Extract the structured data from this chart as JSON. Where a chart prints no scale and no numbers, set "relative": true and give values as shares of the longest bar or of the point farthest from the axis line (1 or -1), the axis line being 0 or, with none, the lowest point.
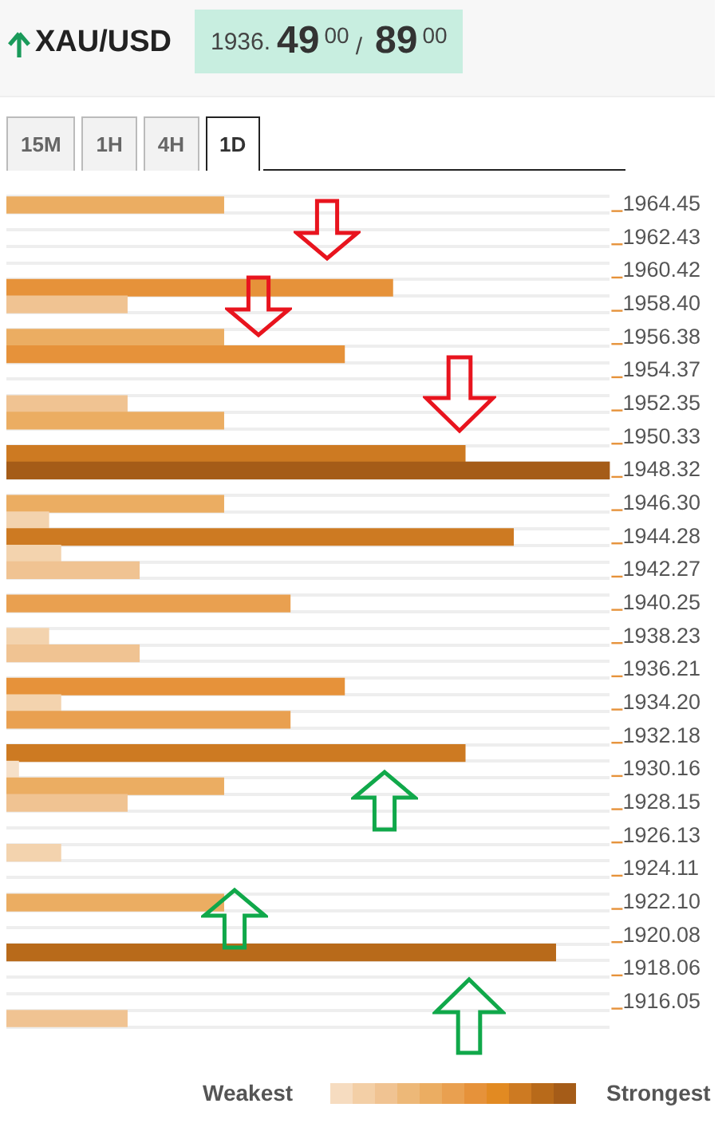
{
  "chart_data": {
    "type": "bar",
    "orientation": "horizontal",
    "relative": true,
    "grid": "y",
    "title": "XAU/USD",
    "annotations": [
      "1936.",
      "49",
      "00",
      "/",
      "89",
      "00",
      "15M",
      "1H",
      "4H",
      "1D",
      "Weakest",
      "Strongest"
    ],
    "categories": [
      "1964.45",
      null,
      "1962.43",
      null,
      "1960.42",
      null,
      "1958.40",
      null,
      "1956.38",
      null,
      "1954.37",
      null,
      "1952.35",
      null,
      "1950.33",
      null,
      "1948.32",
      null,
      "1946.30",
      null,
      "1944.28",
      null,
      "1942.27",
      null,
      "1940.25",
      null,
      "1938.23",
      null,
      "1936.21",
      null,
      "1934.20",
      null,
      "1932.18",
      null,
      "1930.16",
      null,
      "1928.15",
      null,
      "1926.13",
      null,
      "1924.11",
      null,
      "1922.10",
      null,
      "1920.08",
      null,
      "1918.06",
      null,
      "1916.05",
      null
    ],
    "values": [
      0.36,
      null,
      null,
      null,
      null,
      0.64,
      0.2,
      null,
      0.36,
      0.56,
      null,
      null,
      0.2,
      0.36,
      null,
      0.76,
      1,
      null,
      0.36,
      0.07,
      0.84,
      0.09,
      0.22,
      null,
      0.47,
      null,
      0.07,
      0.22,
      null,
      0.56,
      0.09,
      0.47,
      null,
      0.76,
      0.02,
      0.36,
      0.2,
      null,
      null,
      0.09,
      null,
      null,
      0.36,
      null,
      null,
      0.91,
      null,
      null,
      null,
      0.2
    ],
    "colors": [
      "#ebad62",
      null,
      null,
      null,
      null,
      "#e6923a",
      "#f0c392",
      null,
      "#ebad62",
      "#e6923a",
      null,
      null,
      "#f0c392",
      "#ebad62",
      null,
      "#cd7a22",
      "#a55c18",
      null,
      "#ebad62",
      "#f3d3ae",
      "#cd7a22",
      "#f3d3ae",
      "#f0c392",
      null,
      "#e9a050",
      null,
      "#f3d3ae",
      "#f0c392",
      null,
      "#e6923a",
      "#f3d3ae",
      "#e9a050",
      null,
      "#cd7a22",
      "#f6e0c8",
      "#ebad62",
      "#f0c392",
      null,
      null,
      "#f3d3ae",
      null,
      null,
      "#ebad62",
      null,
      null,
      "#b86a1a",
      null,
      null,
      null,
      "#f0c392"
    ]
  }
}
